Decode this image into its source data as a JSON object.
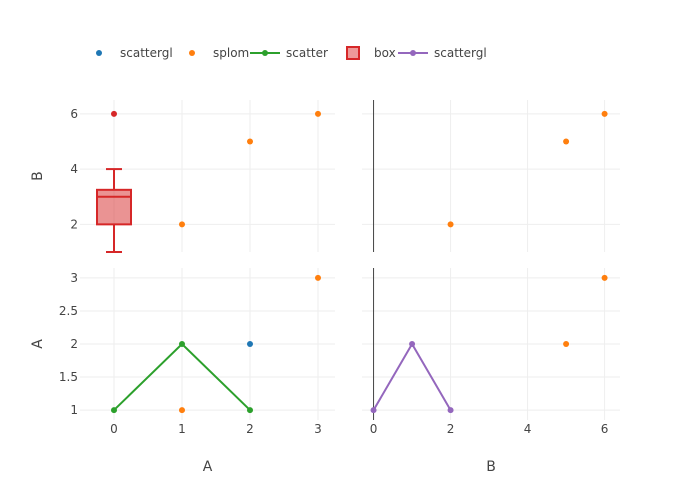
{
  "legend": [
    {
      "label": "scattergl",
      "kind": "marker",
      "color": "#1f77b4"
    },
    {
      "label": "splom",
      "kind": "marker",
      "color": "#ff7f0e"
    },
    {
      "label": "scatter",
      "kind": "line-marker",
      "color": "#2ca02c"
    },
    {
      "label": "box",
      "kind": "box",
      "color": "#d62728",
      "fill": "#ee9999"
    },
    {
      "label": "scattergl",
      "kind": "line-marker",
      "color": "#9467bd"
    }
  ],
  "chart_data": [
    {
      "type": "scatter",
      "panel": "top-left",
      "xlabel": "",
      "ylabel": "B",
      "xlim": [
        -0.5,
        3.25
      ],
      "ylim": [
        1.0,
        6.5
      ],
      "yticks": [
        2,
        4,
        6
      ],
      "series": [
        {
          "name": "splom",
          "color": "#ff7f0e",
          "mode": "markers",
          "x": [
            1,
            2,
            3
          ],
          "y": [
            2,
            5,
            6
          ]
        },
        {
          "name": "box",
          "color": "#d62728",
          "type": "box",
          "x": 0,
          "lowerfence": 1,
          "q1": 2,
          "median": 3,
          "q3": 3.25,
          "upperfence": 4,
          "outliers": [
            6
          ]
        }
      ]
    },
    {
      "type": "scatter",
      "panel": "top-right",
      "xlabel": "",
      "ylabel": "",
      "xlim": [
        -0.3,
        6.4
      ],
      "ylim": [
        1.0,
        6.5
      ],
      "series": [
        {
          "name": "splom",
          "color": "#ff7f0e",
          "mode": "markers",
          "x": [
            2,
            5,
            6
          ],
          "y": [
            2,
            5,
            6
          ]
        }
      ]
    },
    {
      "type": "line",
      "panel": "bottom-left",
      "xlabel": "A",
      "ylabel": "A",
      "xlim": [
        -0.5,
        3.25
      ],
      "ylim": [
        0.85,
        3.15
      ],
      "xticks": [
        0,
        1,
        2,
        3
      ],
      "yticks": [
        1,
        1.5,
        2,
        2.5,
        3
      ],
      "series": [
        {
          "name": "scatter",
          "color": "#2ca02c",
          "mode": "lines+markers",
          "x": [
            0,
            1,
            2
          ],
          "y": [
            1,
            2,
            1
          ]
        },
        {
          "name": "splom",
          "color": "#ff7f0e",
          "mode": "markers",
          "x": [
            1,
            3
          ],
          "y": [
            1,
            3
          ]
        },
        {
          "name": "scattergl",
          "color": "#1f77b4",
          "mode": "markers",
          "x": [
            2
          ],
          "y": [
            2
          ]
        }
      ]
    },
    {
      "type": "line",
      "panel": "bottom-right",
      "xlabel": "B",
      "ylabel": "",
      "xlim": [
        -0.3,
        6.4
      ],
      "ylim": [
        0.85,
        3.15
      ],
      "xticks": [
        0,
        2,
        4,
        6
      ],
      "series": [
        {
          "name": "scattergl",
          "color": "#9467bd",
          "mode": "lines+markers",
          "x": [
            0,
            1,
            2
          ],
          "y": [
            1,
            2,
            1
          ]
        },
        {
          "name": "splom",
          "color": "#ff7f0e",
          "mode": "markers",
          "x": [
            5,
            6
          ],
          "y": [
            2,
            3
          ]
        }
      ]
    }
  ]
}
